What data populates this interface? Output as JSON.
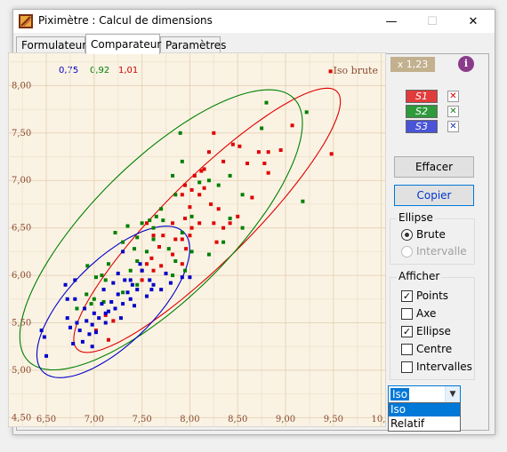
{
  "window": {
    "title": "Piximètre : Calcul de dimensions",
    "controls": {
      "minimize": "—",
      "maximize": "☐",
      "close": "✕"
    }
  },
  "tabs": [
    {
      "label": "Formulateur",
      "active": false
    },
    {
      "label": "Comparateur",
      "active": true
    },
    {
      "label": "Paramètres",
      "active": false
    }
  ],
  "header": {
    "ratios": [
      {
        "label": "0,75",
        "color": "#0000c8"
      },
      {
        "label": "0,92",
        "color": "#008000"
      },
      {
        "label": "1,01",
        "color": "#d00000"
      }
    ],
    "mode_label": "Iso brute"
  },
  "zoom": "x 1,23",
  "info_icon": "i",
  "series": [
    {
      "label": "S1",
      "color": "#e23b3b",
      "remove": "✕",
      "remove_color": "#d00000"
    },
    {
      "label": "S2",
      "color": "#2e9a3b",
      "remove": "✕",
      "remove_color": "#1a7a1a"
    },
    {
      "label": "S3",
      "color": "#4a54d8",
      "remove": "✕",
      "remove_color": "#1a3aa8"
    }
  ],
  "buttons": {
    "clear": "Effacer",
    "copy": "Copier"
  },
  "ellipse_group": {
    "title": "Ellipse",
    "options": [
      {
        "label": "Brute",
        "checked": true,
        "enabled": true
      },
      {
        "label": "Intervalle",
        "checked": false,
        "enabled": false
      }
    ]
  },
  "display_group": {
    "title": "Afficher",
    "options": [
      {
        "label": "Points",
        "checked": true
      },
      {
        "label": "Axe",
        "checked": false
      },
      {
        "label": "Ellipse",
        "checked": true
      },
      {
        "label": "Centre",
        "checked": false
      },
      {
        "label": "Intervalles",
        "checked": false
      }
    ]
  },
  "scale_select": {
    "value": "Iso",
    "options": [
      "Iso",
      "Relatif"
    ]
  },
  "chart_data": {
    "type": "scatter",
    "title": "",
    "xlabel": "",
    "ylabel": "",
    "x_ticks": [
      "6,50",
      "7,00",
      "7,50",
      "8,00",
      "8,50",
      "9,00",
      "9,50",
      "10,0"
    ],
    "y_ticks": [
      "8,00",
      "7,50",
      "7,00",
      "6,50",
      "6,00",
      "5,50",
      "5,00",
      "4,50"
    ],
    "xlim": [
      6.1,
      10.05
    ],
    "ylim": [
      4.4,
      8.35
    ],
    "grid": true,
    "series": [
      {
        "color": "#e00000",
        "points": [
          [
            9.47,
            8.15
          ],
          [
            9.48,
            7.28
          ],
          [
            9.07,
            7.58
          ],
          [
            8.95,
            7.32
          ],
          [
            8.82,
            7.3
          ],
          [
            8.78,
            7.18
          ],
          [
            8.72,
            7.3
          ],
          [
            8.6,
            7.18
          ],
          [
            8.52,
            7.36
          ],
          [
            8.45,
            7.38
          ],
          [
            8.35,
            7.2
          ],
          [
            8.25,
            7.5
          ],
          [
            8.2,
            7.3
          ],
          [
            8.15,
            7.12
          ],
          [
            8.05,
            7.05
          ],
          [
            8.02,
            6.9
          ],
          [
            8.0,
            6.72
          ],
          [
            7.95,
            6.6
          ],
          [
            7.92,
            6.85
          ],
          [
            8.1,
            6.85
          ],
          [
            8.15,
            6.92
          ],
          [
            8.22,
            6.75
          ],
          [
            8.25,
            6.55
          ],
          [
            8.3,
            6.7
          ],
          [
            8.35,
            6.5
          ],
          [
            8.42,
            6.55
          ],
          [
            8.5,
            6.62
          ],
          [
            8.65,
            6.82
          ],
          [
            8.82,
            7.08
          ],
          [
            8.0,
            6.42
          ],
          [
            7.92,
            6.38
          ],
          [
            7.85,
            6.38
          ],
          [
            7.82,
            6.55
          ],
          [
            7.72,
            6.42
          ],
          [
            7.68,
            6.3
          ],
          [
            7.6,
            6.18
          ],
          [
            7.82,
            6.22
          ],
          [
            7.96,
            6.28
          ],
          [
            8.02,
            6.5
          ],
          [
            7.95,
            6.95
          ],
          [
            7.62,
            6.05
          ],
          [
            7.7,
            6.1
          ],
          [
            7.55,
            6.12
          ],
          [
            7.5,
            5.95
          ],
          [
            7.92,
            6.12
          ],
          [
            7.62,
            6.42
          ],
          [
            7.55,
            6.55
          ],
          [
            7.12,
            5.58
          ],
          [
            7.2,
            5.52
          ],
          [
            7.02,
            5.42
          ],
          [
            7.15,
            5.32
          ],
          [
            8.12,
            7.1
          ],
          [
            8.1,
            6.55
          ],
          [
            8.28,
            6.35
          ],
          [
            7.5,
            6.05
          ]
        ]
      },
      {
        "color": "#008000",
        "points": [
          [
            8.8,
            7.82
          ],
          [
            9.22,
            7.72
          ],
          [
            9.18,
            6.78
          ],
          [
            8.75,
            7.55
          ],
          [
            8.55,
            6.85
          ],
          [
            8.42,
            7.05
          ],
          [
            8.3,
            6.95
          ],
          [
            8.2,
            7.0
          ],
          [
            8.1,
            6.98
          ],
          [
            8.02,
            6.62
          ],
          [
            7.92,
            7.2
          ],
          [
            7.9,
            7.5
          ],
          [
            7.82,
            7.05
          ],
          [
            7.85,
            6.85
          ],
          [
            7.7,
            6.7
          ],
          [
            7.65,
            6.62
          ],
          [
            7.62,
            6.38
          ],
          [
            7.55,
            6.25
          ],
          [
            7.45,
            6.15
          ],
          [
            7.45,
            6.4
          ],
          [
            7.38,
            6.05
          ],
          [
            7.3,
            6.35
          ],
          [
            7.42,
            6.28
          ],
          [
            7.35,
            6.52
          ],
          [
            7.22,
            6.45
          ],
          [
            7.15,
            6.12
          ],
          [
            7.08,
            6.0
          ],
          [
            7.02,
            5.98
          ],
          [
            7.0,
            5.75
          ],
          [
            6.97,
            5.7
          ],
          [
            6.93,
            6.1
          ],
          [
            6.92,
            5.8
          ],
          [
            6.82,
            5.65
          ],
          [
            7.12,
            5.95
          ],
          [
            7.1,
            5.72
          ],
          [
            7.82,
            6.0
          ],
          [
            7.92,
            6.45
          ],
          [
            8.2,
            6.22
          ],
          [
            8.35,
            6.35
          ],
          [
            7.5,
            6.55
          ],
          [
            7.62,
            6.5
          ],
          [
            7.72,
            6.58
          ],
          [
            7.78,
            6.28
          ],
          [
            7.95,
            6.05
          ],
          [
            8.02,
            6.25
          ],
          [
            8.42,
            6.6
          ],
          [
            8.55,
            6.5
          ],
          [
            7.58,
            6.58
          ],
          [
            7.45,
            5.9
          ],
          [
            7.3,
            5.82
          ],
          [
            7.85,
            6.15
          ]
        ]
      },
      {
        "color": "#0000c8",
        "points": [
          [
            6.45,
            5.42
          ],
          [
            6.48,
            5.35
          ],
          [
            6.5,
            5.15
          ],
          [
            6.72,
            5.55
          ],
          [
            6.75,
            5.45
          ],
          [
            6.78,
            5.28
          ],
          [
            6.8,
            5.75
          ],
          [
            6.82,
            5.5
          ],
          [
            6.85,
            5.42
          ],
          [
            6.88,
            5.3
          ],
          [
            6.9,
            5.65
          ],
          [
            6.92,
            5.52
          ],
          [
            6.95,
            5.38
          ],
          [
            6.98,
            5.48
          ],
          [
            7.0,
            5.6
          ],
          [
            7.02,
            5.4
          ],
          [
            7.05,
            5.55
          ],
          [
            7.08,
            5.7
          ],
          [
            7.1,
            5.85
          ],
          [
            7.12,
            5.6
          ],
          [
            7.15,
            5.62
          ],
          [
            7.18,
            5.72
          ],
          [
            7.2,
            5.92
          ],
          [
            7.22,
            5.65
          ],
          [
            7.25,
            5.8
          ],
          [
            7.28,
            5.55
          ],
          [
            7.3,
            5.7
          ],
          [
            7.32,
            5.95
          ],
          [
            7.35,
            5.82
          ],
          [
            7.38,
            5.75
          ],
          [
            7.4,
            5.9
          ],
          [
            7.42,
            5.68
          ],
          [
            7.45,
            5.85
          ],
          [
            7.5,
            6.05
          ],
          [
            7.55,
            5.78
          ],
          [
            7.58,
            5.95
          ],
          [
            7.6,
            5.85
          ],
          [
            7.62,
            5.9
          ],
          [
            7.7,
            5.85
          ],
          [
            7.75,
            6.02
          ],
          [
            7.8,
            5.92
          ],
          [
            7.92,
            5.98
          ],
          [
            8.0,
            5.98
          ],
          [
            6.72,
            5.75
          ],
          [
            6.7,
            5.9
          ],
          [
            6.8,
            5.95
          ],
          [
            7.25,
            6.02
          ],
          [
            7.48,
            6.12
          ],
          [
            7.3,
            6.25
          ],
          [
            7.12,
            5.5
          ],
          [
            6.98,
            5.25
          ],
          [
            7.38,
            5.95
          ]
        ]
      }
    ],
    "ellipses": [
      {
        "color": "#e00000",
        "center": [
          8.18,
          6.58
        ],
        "semi_major": 1.92,
        "semi_minor": 0.44,
        "angle_deg": 45
      },
      {
        "color": "#008000",
        "center": [
          7.7,
          6.48
        ],
        "semi_major": 1.96,
        "semi_minor": 0.72,
        "angle_deg": 45
      },
      {
        "color": "#0000c8",
        "center": [
          7.2,
          5.72
        ],
        "semi_major": 1.04,
        "semi_minor": 0.44,
        "angle_deg": 45
      }
    ]
  }
}
